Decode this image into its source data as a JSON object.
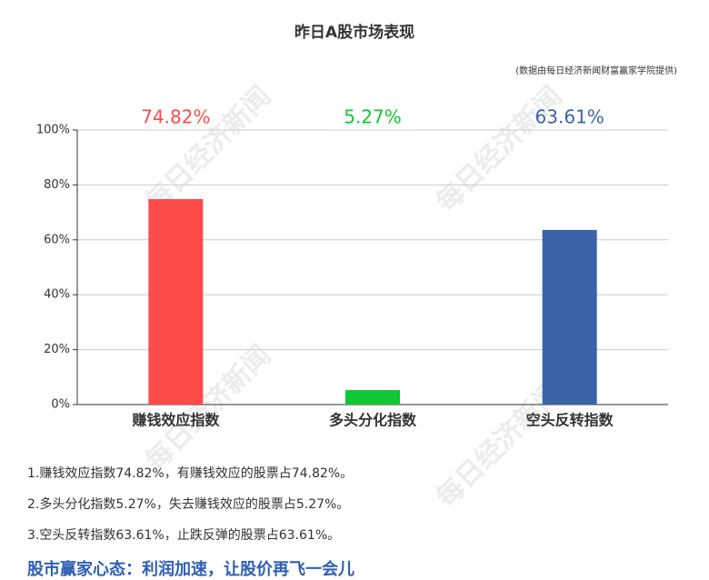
{
  "chart_data": {
    "type": "bar",
    "title": "昨日A股市场表现",
    "subtitle": "(数据由每日经济新闻财富赢家学院提供)",
    "categories": [
      "赚钱效应指数",
      "多头分化指数",
      "空头反转指数"
    ],
    "values": [
      74.82,
      5.27,
      63.61
    ],
    "value_labels": [
      "74.82%",
      "5.27%",
      "63.61%"
    ],
    "colors": [
      "#ff4a4a",
      "#10c832",
      "#3a63a8"
    ],
    "ylim": [
      0,
      100
    ],
    "yticks": [
      {
        "value": 0,
        "label": "0%"
      },
      {
        "value": 20,
        "label": "20%"
      },
      {
        "value": 40,
        "label": "40%"
      },
      {
        "value": 60,
        "label": "60%"
      },
      {
        "value": 80,
        "label": "80%"
      },
      {
        "value": 100,
        "label": "100%"
      }
    ],
    "grid": true
  },
  "notes": [
    "1.赚钱效应指数74.82%，有赚钱效应的股票占74.82%。",
    "2.多头分化指数5.27%，失去赚钱效应的股票占5.27%。",
    "3.空头反转指数63.61%，止跌反弹的股票占63.61%。"
  ],
  "footer": "股市赢家心态：利润加速，让股价再飞一会儿",
  "watermark": "每日经济新闻"
}
